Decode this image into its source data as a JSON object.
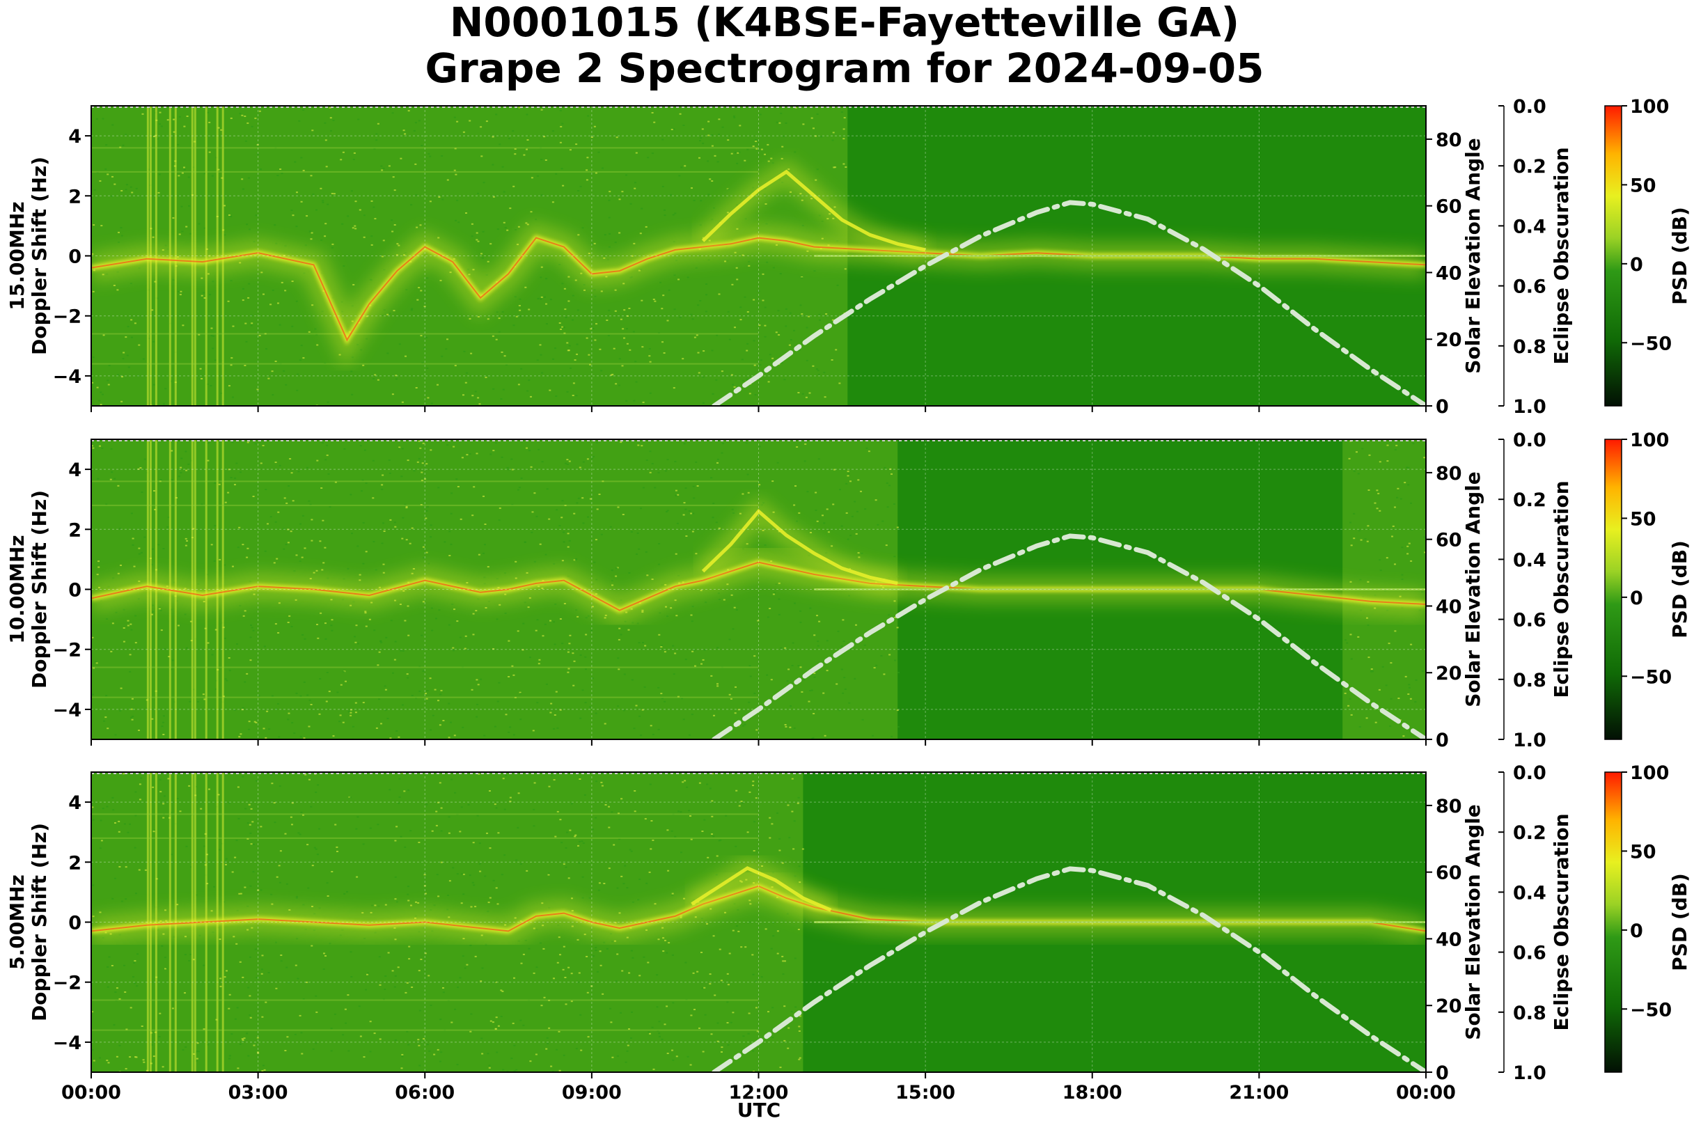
{
  "title_line1": "N0001015 (K4BSE-Fayetteville GA)",
  "title_line2": "Grape 2 Spectrogram for 2024-09-05",
  "xlabel": "UTC",
  "x_ticks": [
    "00:00",
    "03:00",
    "06:00",
    "09:00",
    "12:00",
    "15:00",
    "18:00",
    "21:00",
    "00:00"
  ],
  "colors": {
    "background_green": "#1f8a0c",
    "signal_yellow": "#e6ee2a",
    "signal_red": "#ff3010",
    "solar_curve": "#d8e8d2"
  },
  "chart_data": {
    "type": "heatmap",
    "shared": {
      "x_unit": "UTC hours",
      "xlim": [
        0,
        24
      ],
      "ylim_doppler": [
        -5,
        5
      ],
      "y_ticks_doppler": [
        4,
        2,
        0,
        -2,
        -4
      ],
      "solar_axis_label": "Solar Elevation Angle",
      "solar_ylim": [
        0,
        90
      ],
      "solar_ticks": [
        "80",
        "60",
        "40",
        "20",
        "0"
      ],
      "eclipse_axis_label": "Eclipse Obscuration",
      "eclipse_ylim": [
        0.0,
        1.0
      ],
      "eclipse_ticks": [
        "0.0",
        "0.2",
        "0.4",
        "0.6",
        "0.8",
        "1.0"
      ],
      "colorbar_label": "PSD (dB)",
      "colorbar_range": [
        -90,
        100
      ],
      "colorbar_ticks": [
        "100",
        "50",
        "0",
        "−50"
      ],
      "solar_elevation_curve": {
        "style": "dash-dot",
        "x": [
          11.2,
          12,
          13,
          14,
          15,
          16,
          17,
          17.6,
          18,
          19,
          20,
          21,
          22,
          23,
          24
        ],
        "y": [
          0,
          9,
          21,
          32,
          42,
          51,
          58,
          61,
          60.5,
          56,
          47,
          36,
          23,
          11,
          0
        ]
      }
    },
    "panels": [
      {
        "freq_label": "15.00MHz",
        "ylabel": "Doppler Shift (Hz)",
        "main_trace": {
          "x": [
            0,
            1,
            2,
            3,
            4,
            4.6,
            5,
            5.5,
            6,
            6.5,
            7,
            7.5,
            8,
            8.5,
            9,
            9.5,
            10,
            10.5,
            11,
            11.5,
            12,
            12.5,
            13,
            14,
            15,
            16,
            17,
            18,
            19,
            20,
            21,
            22,
            23,
            24
          ],
          "y": [
            -0.4,
            -0.1,
            -0.2,
            0.1,
            -0.3,
            -2.8,
            -1.6,
            -0.5,
            0.3,
            -0.2,
            -1.4,
            -0.6,
            0.6,
            0.3,
            -0.6,
            -0.5,
            -0.1,
            0.2,
            0.3,
            0.4,
            0.6,
            0.5,
            0.3,
            0.2,
            0.1,
            0.0,
            0.1,
            0.0,
            0.0,
            0.0,
            -0.1,
            -0.1,
            -0.2,
            -0.3
          ]
        },
        "upper_trace": {
          "x": [
            11,
            11.5,
            12,
            12.5,
            13,
            13.5,
            14,
            14.5,
            15
          ],
          "y": [
            0.5,
            1.4,
            2.2,
            2.8,
            2.0,
            1.2,
            0.7,
            0.4,
            0.2
          ]
        },
        "bright_hours": [
          [
            0,
            13.6
          ]
        ]
      },
      {
        "freq_label": "10.00MHz",
        "ylabel": "Doppler Shift (Hz)",
        "main_trace": {
          "x": [
            0,
            1,
            2,
            3,
            4,
            5,
            6,
            7,
            7.5,
            8,
            8.5,
            9,
            9.5,
            10,
            10.5,
            11,
            11.5,
            12,
            12.5,
            13,
            14,
            15,
            16,
            17,
            18,
            19,
            20,
            21,
            22,
            23,
            24
          ],
          "y": [
            -0.3,
            0.1,
            -0.2,
            0.1,
            0.0,
            -0.2,
            0.3,
            -0.1,
            0.0,
            0.2,
            0.3,
            -0.2,
            -0.7,
            -0.3,
            0.1,
            0.3,
            0.6,
            0.9,
            0.7,
            0.5,
            0.2,
            0.1,
            0.0,
            0.0,
            0.0,
            0.0,
            0.0,
            0.0,
            -0.2,
            -0.4,
            -0.5
          ]
        },
        "upper_trace": {
          "x": [
            11,
            11.5,
            12,
            12.5,
            13,
            13.5,
            14,
            14.5
          ],
          "y": [
            0.6,
            1.5,
            2.6,
            1.8,
            1.2,
            0.7,
            0.4,
            0.2
          ]
        },
        "bright_hours": [
          [
            0,
            14.5
          ],
          [
            22.5,
            24
          ]
        ]
      },
      {
        "freq_label": "5.00MHz",
        "ylabel": "Doppler Shift (Hz)",
        "main_trace": {
          "x": [
            0,
            1,
            2,
            3,
            4,
            5,
            6,
            7,
            7.5,
            8,
            8.5,
            9,
            9.5,
            10,
            10.5,
            11,
            11.5,
            12,
            12.5,
            13,
            14,
            15,
            16,
            17,
            18,
            19,
            20,
            21,
            22,
            23,
            24
          ],
          "y": [
            -0.3,
            -0.1,
            0.0,
            0.1,
            0.0,
            -0.1,
            0.0,
            -0.2,
            -0.3,
            0.2,
            0.3,
            0.0,
            -0.2,
            0.0,
            0.2,
            0.6,
            0.9,
            1.2,
            0.8,
            0.5,
            0.1,
            0.0,
            0.0,
            0.0,
            0.0,
            0.0,
            0.0,
            0.0,
            0.0,
            0.0,
            -0.3
          ]
        },
        "upper_trace": {
          "x": [
            10.8,
            11.3,
            11.8,
            12.3,
            12.8,
            13.3
          ],
          "y": [
            0.6,
            1.2,
            1.8,
            1.4,
            0.8,
            0.4
          ]
        },
        "bright_hours": [
          [
            0,
            12.8
          ]
        ]
      }
    ]
  }
}
